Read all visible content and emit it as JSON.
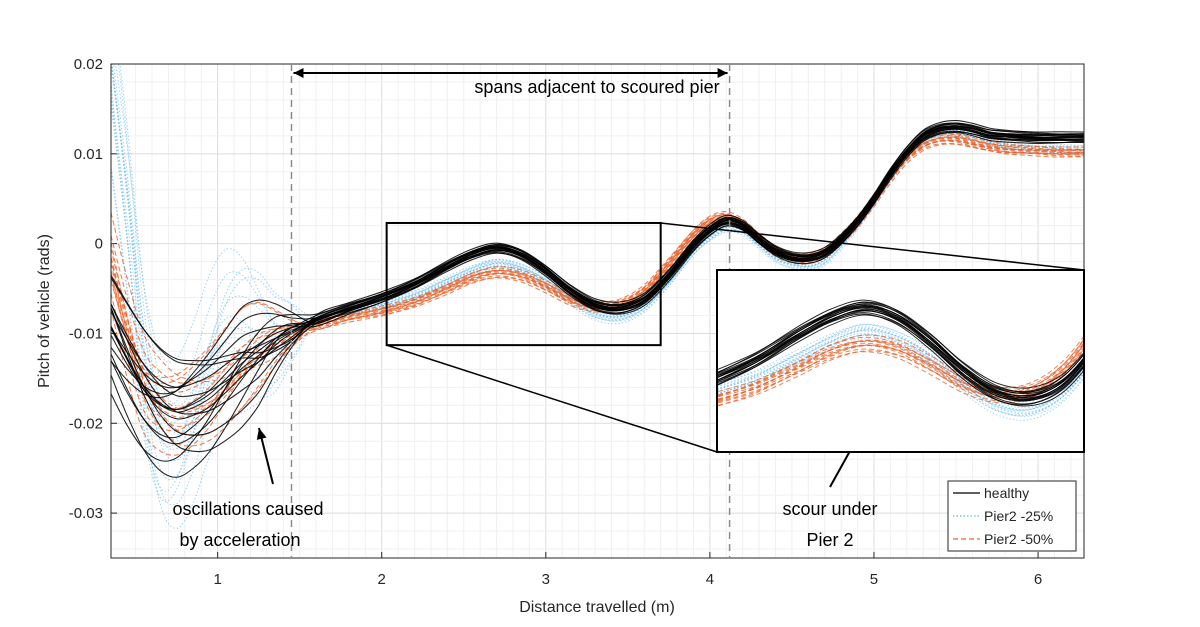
{
  "colors": {
    "healthy": "#000000",
    "pier25": "#5bb4ec",
    "pier50": "#e8642c",
    "grid": "#e6e6e6",
    "dashline": "#8c8c8c"
  },
  "chart_data": {
    "type": "line",
    "title": "",
    "xlabel": "Distance travelled (m)",
    "ylabel": "Pitch of vehicle (rads)",
    "xlim": [
      0.35,
      6.28
    ],
    "ylim": [
      -0.035,
      0.02
    ],
    "xticks": [
      1,
      2,
      3,
      4,
      5,
      6
    ],
    "xtick_labels": [
      "1",
      "2",
      "3",
      "4",
      "5",
      "6"
    ],
    "yticks": [
      0.02,
      0.01,
      0,
      -0.01,
      -0.02,
      -0.03
    ],
    "ytick_labels": [
      "0.02",
      "0.01",
      "0",
      "-0.01",
      "-0.02",
      "-0.03"
    ],
    "grid": true,
    "legend": {
      "position": "bottom-right",
      "entries": [
        "healthy",
        "Pier2 -25%",
        "Pier2 -50%"
      ]
    },
    "x": [
      0.35,
      0.45,
      0.55,
      0.65,
      0.75,
      0.85,
      0.95,
      1.05,
      1.15,
      1.25,
      1.35,
      1.45,
      1.6,
      1.8,
      2.0,
      2.2,
      2.4,
      2.55,
      2.7,
      2.85,
      3.0,
      3.15,
      3.3,
      3.45,
      3.6,
      3.75,
      3.9,
      4.0,
      4.1,
      4.2,
      4.3,
      4.4,
      4.5,
      4.6,
      4.7,
      4.8,
      4.9,
      5.0,
      5.1,
      5.2,
      5.3,
      5.4,
      5.5,
      5.6,
      5.7,
      5.8,
      5.9,
      6.0,
      6.1,
      6.2,
      6.28
    ],
    "series": [
      {
        "name": "healthy",
        "style": "solid",
        "values": [
          -0.009,
          -0.0125,
          -0.0155,
          -0.0175,
          -0.0183,
          -0.0178,
          -0.0168,
          -0.0152,
          -0.0135,
          -0.0122,
          -0.0108,
          -0.0098,
          -0.0085,
          -0.0072,
          -0.006,
          -0.0045,
          -0.0025,
          -0.0012,
          -0.0005,
          -0.0012,
          -0.003,
          -0.0052,
          -0.0068,
          -0.0072,
          -0.0062,
          -0.0035,
          -0.0002,
          0.0015,
          0.0025,
          0.002,
          0.0005,
          -0.0008,
          -0.0015,
          -0.0016,
          -0.001,
          0.0005,
          0.0025,
          0.005,
          0.0078,
          0.0102,
          0.012,
          0.0128,
          0.013,
          0.0127,
          0.0122,
          0.012,
          0.0119,
          0.0118,
          0.0118,
          0.0118,
          0.0118
        ]
      },
      {
        "name": "Pier2 -25%",
        "style": "dotted",
        "values": [
          0.02,
          0.005,
          -0.012,
          -0.021,
          -0.0225,
          -0.019,
          -0.0135,
          -0.01,
          -0.0098,
          -0.011,
          -0.0118,
          -0.0105,
          -0.0088,
          -0.0075,
          -0.0068,
          -0.0058,
          -0.0042,
          -0.003,
          -0.0022,
          -0.0028,
          -0.0042,
          -0.0062,
          -0.0078,
          -0.0082,
          -0.007,
          -0.0042,
          -0.0008,
          0.0008,
          0.0018,
          0.0015,
          0.0,
          -0.0015,
          -0.0022,
          -0.0025,
          -0.0018,
          0.0,
          0.0022,
          0.0048,
          0.0075,
          0.0098,
          0.0114,
          0.0121,
          0.0122,
          0.0118,
          0.0112,
          0.0108,
          0.0106,
          0.0105,
          0.0105,
          0.0104,
          0.0104
        ]
      },
      {
        "name": "Pier2 -50%",
        "style": "dashed",
        "values": [
          -0.002,
          -0.0095,
          -0.0155,
          -0.0178,
          -0.0188,
          -0.0185,
          -0.0175,
          -0.0158,
          -0.0138,
          -0.0122,
          -0.011,
          -0.0102,
          -0.0092,
          -0.0082,
          -0.0075,
          -0.0065,
          -0.005,
          -0.0038,
          -0.0032,
          -0.0036,
          -0.0048,
          -0.0062,
          -0.007,
          -0.0068,
          -0.0052,
          -0.0022,
          0.001,
          0.0025,
          0.003,
          0.0022,
          0.0006,
          -0.0008,
          -0.0015,
          -0.0016,
          -0.001,
          0.0005,
          0.0024,
          0.0048,
          0.0074,
          0.0096,
          0.011,
          0.0116,
          0.0116,
          0.0112,
          0.0108,
          0.0105,
          0.0104,
          0.0103,
          0.0102,
          0.0102,
          0.0102
        ]
      }
    ],
    "annotations": {
      "span_label": "spans adjacent to scoured pier",
      "span_range": [
        1.45,
        4.12
      ],
      "span_y": 0.019,
      "oscillation_line1": "oscillations caused",
      "oscillation_line2": "by acceleration",
      "scour_line1": "scour under",
      "scour_line2": "Pier 2",
      "zoom_box": {
        "x0": 2.03,
        "x1": 3.7,
        "y0": -0.0113,
        "y1": 0.0023
      },
      "inset_xrange": [
        2.03,
        3.7
      ],
      "inset_yrange": [
        -0.0113,
        0.0023
      ],
      "inset_location": "right, below the curves"
    }
  }
}
